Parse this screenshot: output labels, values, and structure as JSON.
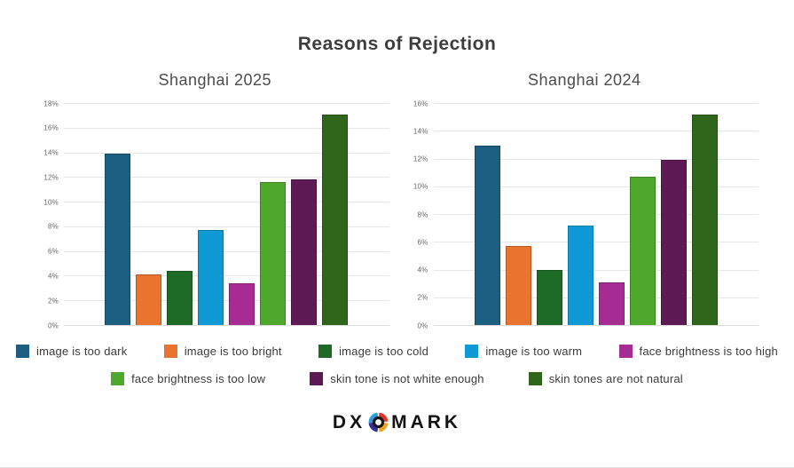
{
  "title": "Reasons of Rejection",
  "series": [
    {
      "label": "image is too dark",
      "color": "#1d5f80"
    },
    {
      "label": "image is too bright",
      "color": "#e8742f"
    },
    {
      "label": "image is too cold",
      "color": "#1d6b26"
    },
    {
      "label": "image is too warm",
      "color": "#109ad5"
    },
    {
      "label": "face brightness is too high",
      "color": "#a62b93"
    },
    {
      "label": "face brightness is too low",
      "color": "#4ea82c"
    },
    {
      "label": "skin tone is not white enough",
      "color": "#5d1a54"
    },
    {
      "label": "skin tones are not natural",
      "color": "#2f661c"
    }
  ],
  "chart_data": [
    {
      "type": "bar",
      "title": "Shanghai 2025",
      "categories": [
        "image is too dark",
        "image is too bright",
        "image is too cold",
        "image is too warm",
        "face brightness is too high",
        "face brightness is too low",
        "skin tone is not white enough",
        "skin tones are not natural"
      ],
      "values": [
        13.9,
        4.1,
        4.4,
        7.7,
        3.4,
        11.6,
        11.8,
        17.1
      ],
      "xlabel": "",
      "ylabel": "",
      "ylim": [
        0,
        18
      ],
      "ytick_step": 2,
      "ytick_suffix": "%",
      "grid": true,
      "legend_position": "bottom"
    },
    {
      "type": "bar",
      "title": "Shanghai 2024",
      "categories": [
        "image is too dark",
        "image is too bright",
        "image is too cold",
        "image is too warm",
        "face brightness is too high",
        "face brightness is too low",
        "skin tone is not white enough",
        "skin tones are not natural"
      ],
      "values": [
        12.9,
        5.7,
        4.0,
        7.2,
        3.1,
        10.7,
        11.9,
        15.2
      ],
      "xlabel": "",
      "ylabel": "",
      "ylim": [
        0,
        16
      ],
      "ytick_step": 2,
      "ytick_suffix": "%",
      "grid": true,
      "legend_position": "bottom"
    }
  ],
  "legend": {
    "rows": [
      [
        0,
        1,
        2,
        3,
        4
      ],
      [
        5,
        6,
        7
      ]
    ]
  },
  "footer_logo": {
    "text_left": "DX",
    "text_right": "MARK",
    "icon": "dxomark-o-icon",
    "icon_colors": {
      "blue": "#2b9cd8",
      "red": "#e6332a",
      "orange": "#f5a21b",
      "navy": "#33308e",
      "ring": "#1a1a1a"
    }
  }
}
